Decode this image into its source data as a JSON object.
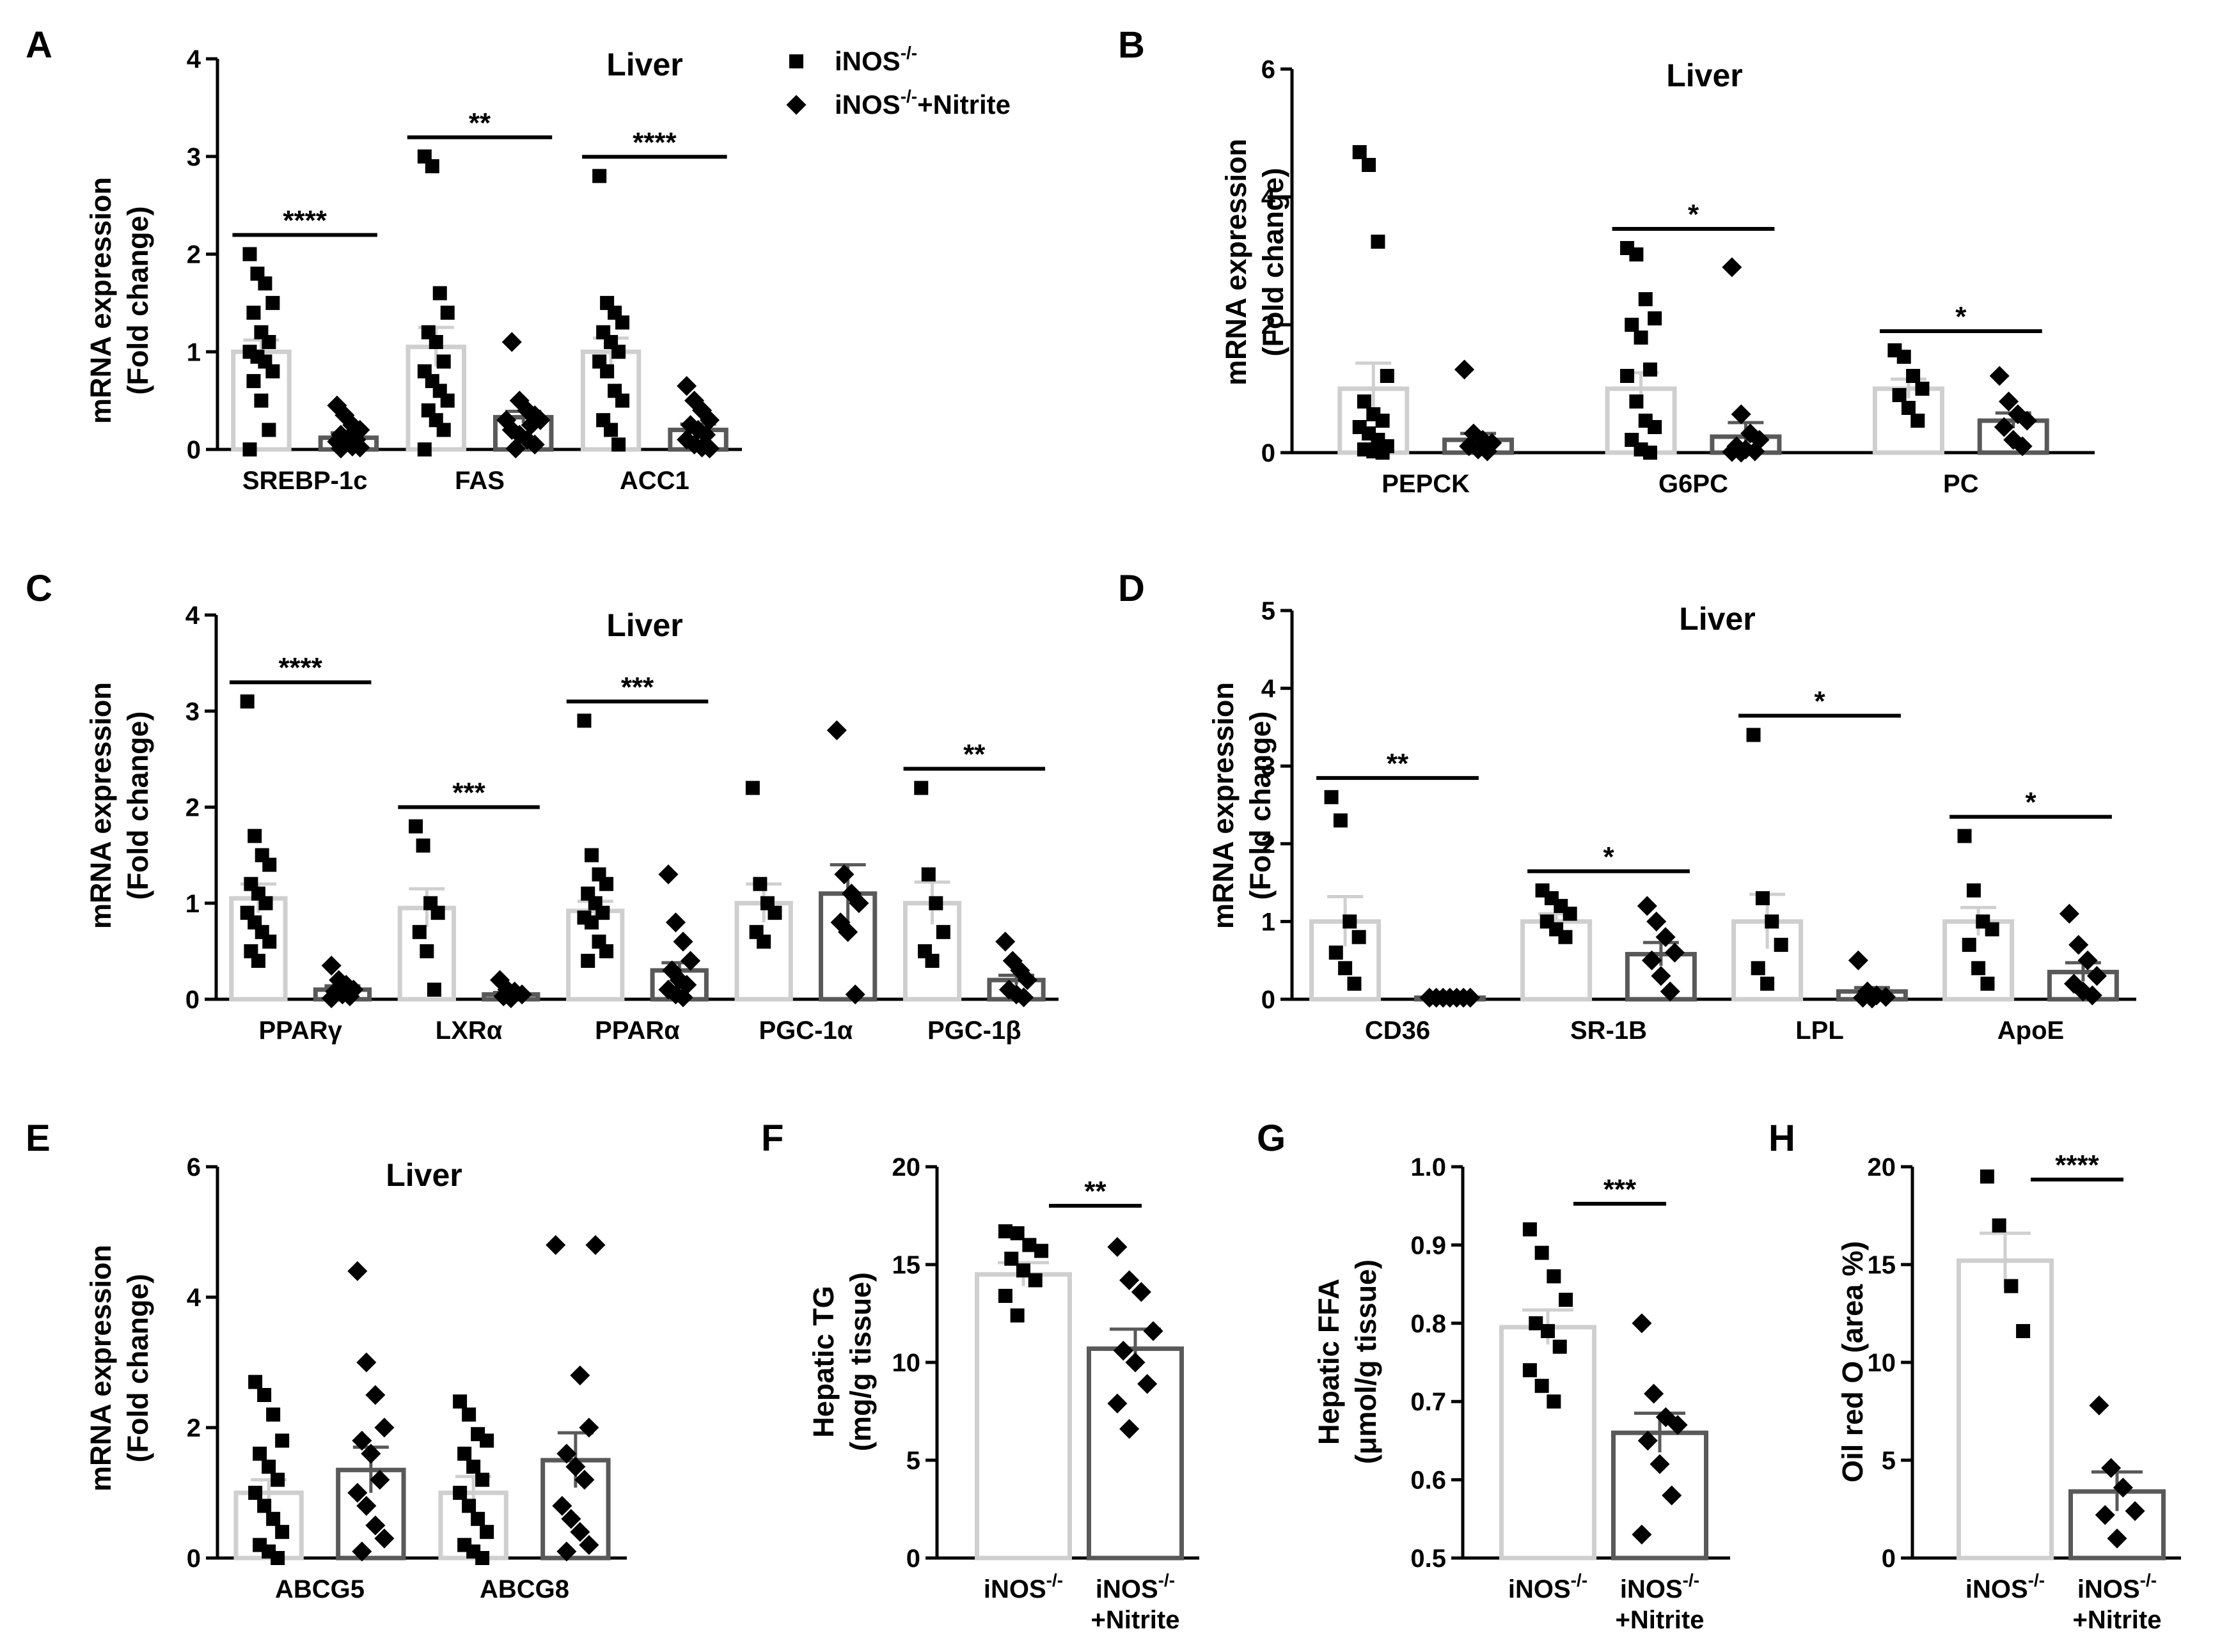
{
  "legend": {
    "series": [
      "iNOS-/-",
      "iNOS-/-+Nitrite"
    ],
    "labels": [
      {
        "text": "iNOS",
        "sup": "-/-",
        "suffix": ""
      },
      {
        "text": "iNOS",
        "sup": "-/-",
        "suffix": "+Nitrite"
      }
    ]
  },
  "colors": {
    "control_bar": "#cfcfcf",
    "nitrite_bar": "#595959",
    "marker": "#000000",
    "axis": "#000000"
  },
  "chart_data": [
    {
      "panel": "A",
      "type": "bar",
      "title": "Liver",
      "ylabel": [
        "mRNA expression",
        "(Fold change)"
      ],
      "ylim": [
        0,
        4
      ],
      "yticks": [
        "0",
        "1",
        "2",
        "3",
        "4"
      ],
      "categories": [
        "SREBP-1c",
        "FAS",
        "ACC1"
      ],
      "series": [
        {
          "name": "iNOS-/-",
          "values": [
            1.0,
            1.05,
            1.0
          ],
          "sem": [
            0.12,
            0.2,
            0.14
          ]
        },
        {
          "name": "iNOS-/-+Nitrite",
          "values": [
            0.12,
            0.33,
            0.2
          ],
          "sem": [
            0.05,
            0.06,
            0.06
          ]
        }
      ],
      "points": [
        [
          [
            2.0,
            1.8,
            1.7,
            1.5,
            1.4,
            1.2,
            1.1,
            1.0,
            0.95,
            0.9,
            0.8,
            0.7,
            0.5,
            0.2,
            0.0
          ],
          [
            0.45,
            0.35,
            0.25,
            0.2,
            0.15,
            0.12,
            0.1,
            0.08,
            0.05,
            0.03,
            0.02,
            0.01
          ]
        ],
        [
          [
            3.0,
            2.9,
            1.6,
            1.4,
            1.2,
            1.1,
            0.9,
            0.8,
            0.7,
            0.6,
            0.5,
            0.4,
            0.3,
            0.2,
            0.0
          ],
          [
            1.1,
            0.5,
            0.4,
            0.35,
            0.3,
            0.3,
            0.25,
            0.2,
            0.15,
            0.1,
            0.05,
            0.01
          ]
        ],
        [
          [
            2.8,
            1.5,
            1.4,
            1.3,
            1.2,
            1.1,
            1.0,
            0.9,
            0.8,
            0.6,
            0.5,
            0.3,
            0.2,
            0.05
          ],
          [
            0.65,
            0.5,
            0.4,
            0.3,
            0.25,
            0.2,
            0.15,
            0.1,
            0.05,
            0.02,
            0.01
          ]
        ]
      ],
      "sig": [
        "****",
        "**",
        "****"
      ],
      "has_legend": true
    },
    {
      "panel": "B",
      "type": "bar",
      "title": "Liver",
      "ylabel": [
        "mRNA expression",
        "(Fold change)"
      ],
      "ylim": [
        0,
        6
      ],
      "yticks": [
        "0",
        "2",
        "4",
        "6"
      ],
      "categories": [
        "PEPCK",
        "G6PC",
        "PC"
      ],
      "series": [
        {
          "name": "iNOS-/-",
          "values": [
            1.0,
            1.0,
            1.0
          ],
          "sem": [
            0.4,
            0.25,
            0.15
          ]
        },
        {
          "name": "iNOS-/-+Nitrite",
          "values": [
            0.2,
            0.25,
            0.5
          ],
          "sem": [
            0.1,
            0.22,
            0.12
          ]
        }
      ],
      "points": [
        [
          [
            4.7,
            4.5,
            3.3,
            1.2,
            0.8,
            0.6,
            0.5,
            0.4,
            0.3,
            0.2,
            0.1,
            0.05,
            0.02,
            0.0
          ],
          [
            1.3,
            0.3,
            0.2,
            0.15,
            0.1,
            0.05,
            0.02
          ]
        ],
        [
          [
            3.2,
            3.1,
            2.4,
            2.1,
            2.0,
            1.8,
            1.3,
            1.2,
            0.8,
            0.5,
            0.4,
            0.2,
            0.05,
            0.0
          ],
          [
            2.9,
            0.6,
            0.3,
            0.2,
            0.1,
            0.05,
            0.02,
            0.01,
            0.0
          ]
        ],
        [
          [
            1.6,
            1.5,
            1.2,
            1.0,
            0.9,
            0.7,
            0.5
          ],
          [
            1.2,
            0.8,
            0.6,
            0.5,
            0.4,
            0.2,
            0.1
          ]
        ]
      ],
      "sig": [
        "",
        "*",
        "*"
      ],
      "has_legend": false
    },
    {
      "panel": "C",
      "type": "bar",
      "title": "Liver",
      "ylabel": [
        "mRNA expression",
        "(Fold change)"
      ],
      "ylim": [
        0,
        4
      ],
      "yticks": [
        "0",
        "1",
        "2",
        "3",
        "4"
      ],
      "categories": [
        "PPARγ",
        "LXRα",
        "PPARα",
        "PGC-1α",
        "PGC-1β"
      ],
      "series": [
        {
          "name": "iNOS-/-",
          "values": [
            1.05,
            0.95,
            0.92,
            1.0,
            1.0
          ],
          "sem": [
            0.15,
            0.2,
            0.1,
            0.2,
            0.22
          ]
        },
        {
          "name": "iNOS-/-+Nitrite",
          "values": [
            0.1,
            0.05,
            0.3,
            1.1,
            0.2
          ],
          "sem": [
            0.04,
            0.02,
            0.08,
            0.3,
            0.05
          ]
        }
      ],
      "points": [
        [
          [
            3.1,
            1.7,
            1.5,
            1.4,
            1.2,
            1.1,
            1.0,
            0.9,
            0.8,
            0.7,
            0.6,
            0.5,
            0.4
          ],
          [
            0.35,
            0.2,
            0.15,
            0.1,
            0.08,
            0.05,
            0.03,
            0.01
          ]
        ],
        [
          [
            1.8,
            1.6,
            1.0,
            0.9,
            0.7,
            0.5,
            0.1
          ],
          [
            0.2,
            0.1,
            0.08,
            0.05,
            0.03,
            0.01
          ]
        ],
        [
          [
            2.9,
            1.5,
            1.3,
            1.2,
            1.1,
            1.0,
            0.9,
            0.85,
            0.8,
            0.6,
            0.5,
            0.4
          ],
          [
            1.3,
            0.8,
            0.6,
            0.4,
            0.3,
            0.2,
            0.15,
            0.1,
            0.05,
            0.02
          ]
        ],
        [
          [
            2.2,
            1.2,
            1.0,
            0.9,
            0.7,
            0.6
          ],
          [
            2.8,
            1.3,
            1.1,
            1.0,
            0.8,
            0.7,
            0.05
          ]
        ],
        [
          [
            2.2,
            1.3,
            1.0,
            0.7,
            0.5,
            0.4
          ],
          [
            0.6,
            0.4,
            0.3,
            0.2,
            0.1,
            0.05,
            0.02
          ]
        ]
      ],
      "sig": [
        "****",
        "***",
        "***",
        "",
        "**"
      ],
      "has_legend": false
    },
    {
      "panel": "D",
      "type": "bar",
      "title": "Liver",
      "ylabel": [
        "mRNA expression",
        "(Fold change)"
      ],
      "ylim": [
        0,
        5
      ],
      "yticks": [
        "0",
        "1",
        "2",
        "3",
        "4",
        "5"
      ],
      "categories": [
        "CD36",
        "SR-1B",
        "LPL",
        "ApoE"
      ],
      "series": [
        {
          "name": "iNOS-/-",
          "values": [
            1.0,
            1.0,
            1.0,
            1.0
          ],
          "sem": [
            0.32,
            0.1,
            0.35,
            0.18
          ]
        },
        {
          "name": "iNOS-/-+Nitrite",
          "values": [
            0.02,
            0.58,
            0.1,
            0.35
          ],
          "sem": [
            0.01,
            0.15,
            0.05,
            0.12
          ]
        }
      ],
      "points": [
        [
          [
            2.6,
            2.3,
            1.0,
            0.8,
            0.6,
            0.4,
            0.2
          ],
          [
            0.02,
            0.02,
            0.02,
            0.02,
            0.02,
            0.02,
            0.02
          ]
        ],
        [
          [
            1.4,
            1.3,
            1.2,
            1.1,
            1.0,
            0.9,
            0.8
          ],
          [
            1.2,
            1.0,
            0.8,
            0.6,
            0.5,
            0.3,
            0.1
          ]
        ],
        [
          [
            3.4,
            1.3,
            1.0,
            0.7,
            0.4,
            0.2
          ],
          [
            0.5,
            0.1,
            0.05,
            0.03,
            0.02,
            0.01
          ]
        ],
        [
          [
            2.1,
            1.4,
            1.0,
            0.9,
            0.7,
            0.4,
            0.2
          ],
          [
            1.1,
            0.7,
            0.5,
            0.3,
            0.2,
            0.1,
            0.05
          ]
        ]
      ],
      "sig": [
        "**",
        "*",
        "*",
        "*"
      ],
      "has_legend": false
    },
    {
      "panel": "E",
      "type": "bar",
      "title": "Liver",
      "ylabel": [
        "mRNA expression",
        "(Fold change)"
      ],
      "ylim": [
        0,
        6
      ],
      "yticks": [
        "0",
        "2",
        "4",
        "6"
      ],
      "categories": [
        "ABCG5",
        "ABCG8"
      ],
      "series": [
        {
          "name": "iNOS-/-",
          "values": [
            1.0,
            1.0
          ],
          "sem": [
            0.2,
            0.25
          ]
        },
        {
          "name": "iNOS-/-+Nitrite",
          "values": [
            1.35,
            1.5
          ],
          "sem": [
            0.35,
            0.42
          ]
        }
      ],
      "points": [
        [
          [
            2.7,
            2.5,
            2.2,
            1.8,
            1.6,
            1.4,
            1.2,
            1.0,
            0.8,
            0.6,
            0.4,
            0.2,
            0.1,
            0.0
          ],
          [
            4.4,
            3.0,
            2.5,
            2.0,
            1.8,
            1.6,
            1.2,
            1.0,
            0.8,
            0.5,
            0.3,
            0.1
          ]
        ],
        [
          [
            2.4,
            2.2,
            1.9,
            1.8,
            1.6,
            1.4,
            1.2,
            1.0,
            0.8,
            0.6,
            0.4,
            0.2,
            0.1,
            0.0
          ],
          [
            4.8,
            4.8,
            2.8,
            2.0,
            1.6,
            1.4,
            1.2,
            0.8,
            0.6,
            0.4,
            0.2,
            0.1
          ]
        ]
      ],
      "sig": [
        "",
        ""
      ],
      "has_legend": false
    },
    {
      "panel": "F",
      "type": "bar",
      "title": "",
      "ylabel": [
        "Hepatic TG",
        "(mg/g tissue)"
      ],
      "ylim": [
        0,
        20
      ],
      "yticks": [
        "0",
        "5",
        "10",
        "15",
        "20"
      ],
      "categories": [
        "iNOS-/-",
        "iNOS-/-+Nitrite"
      ],
      "values": [
        14.5,
        10.7
      ],
      "sem": [
        0.6,
        1.0
      ],
      "points": [
        [
          16.7,
          16.6,
          16.0,
          15.7,
          15.3,
          14.7,
          14.2,
          13.4,
          12.4
        ],
        [
          15.9,
          14.2,
          13.6,
          11.6,
          10.6,
          10.0,
          8.9,
          7.9,
          6.6
        ]
      ],
      "sig": "**"
    },
    {
      "panel": "G",
      "type": "bar",
      "title": "",
      "ylabel": [
        "Hepatic FFA",
        "(μmol/g tissue)"
      ],
      "ylim": [
        0.5,
        1.0
      ],
      "yticks": [
        "0.5",
        "0.6",
        "0.7",
        "0.8",
        "0.9",
        "1.0"
      ],
      "categories": [
        "iNOS-/-",
        "iNOS-/-+Nitrite"
      ],
      "values": [
        0.795,
        0.66
      ],
      "sem": [
        0.022,
        0.025
      ],
      "points": [
        [
          0.92,
          0.89,
          0.86,
          0.83,
          0.8,
          0.79,
          0.77,
          0.74,
          0.72,
          0.7
        ],
        [
          0.8,
          0.71,
          0.68,
          0.67,
          0.65,
          0.62,
          0.58,
          0.53
        ]
      ],
      "sig": "***"
    },
    {
      "panel": "H",
      "type": "bar",
      "title": "",
      "ylabel": [
        "Oil red O (area %)"
      ],
      "ylim": [
        0,
        20
      ],
      "yticks": [
        "0",
        "5",
        "10",
        "15",
        "20"
      ],
      "categories": [
        "iNOS-/-",
        "iNOS-/-+Nitrite"
      ],
      "values": [
        15.2,
        3.4
      ],
      "sem": [
        1.4,
        1.0
      ],
      "points": [
        [
          19.5,
          17.0,
          13.9,
          11.6
        ],
        [
          7.8,
          4.6,
          3.6,
          2.4,
          2.2,
          1.0
        ]
      ],
      "sig": "****"
    }
  ]
}
